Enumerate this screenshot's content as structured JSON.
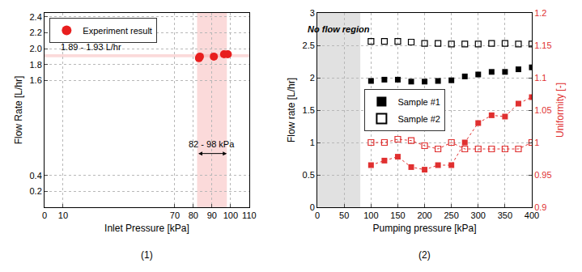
{
  "chart_data": [
    {
      "type": "scatter",
      "caption": "(1)",
      "x_label": "Inlet Pressure [kPa]",
      "y_label": "Flow Rate [L/hr]",
      "series": [
        {
          "name": "Experiment result",
          "color": "#e81e1e",
          "marker": "circle",
          "x": [
            83,
            83.5,
            91,
            96.5,
            98.5
          ],
          "values": [
            1.88,
            1.9,
            1.9,
            1.93,
            1.93
          ]
        }
      ],
      "xlim": [
        0,
        110
      ],
      "xticks": [
        0,
        10,
        70,
        80,
        90,
        100,
        110
      ],
      "ylim": [
        0,
        2.45
      ],
      "yticks": [
        0.2,
        0.4,
        1.6,
        1.8,
        {
          "value": 2,
          "label": "2.0"
        },
        2.2,
        2.4
      ],
      "grid": true,
      "legend": "upper left",
      "x_band": [
        82,
        98
      ],
      "y_band": [
        1.89,
        1.93
      ],
      "annotations": [
        {
          "text": "1.89 - 1.93 L/hr",
          "x": 25,
          "y": 2.02
        },
        {
          "text": "82 - 98 kPa",
          "x": 90,
          "y": 0.8
        }
      ]
    },
    {
      "type": "scatter",
      "caption": "(2)",
      "x_label": "Pumping pressure [kPa]",
      "y_label": "Flow rate [L/hr]",
      "y2_label": "Uniformity [-]",
      "x": [
        100,
        125,
        150,
        175,
        200,
        225,
        250,
        275,
        300,
        325,
        350,
        375,
        400
      ],
      "series": [
        {
          "name": "Sample #1",
          "type": "scatter",
          "color": "#000000",
          "marker": "square",
          "values": [
            1.95,
            1.97,
            1.97,
            1.94,
            1.94,
            1.95,
            1.96,
            2.02,
            2.05,
            2.09,
            2.09,
            2.13,
            2.16
          ]
        },
        {
          "name": "Sample #2",
          "type": "scatter",
          "color": "#000000",
          "marker": "square-open",
          "values": [
            2.56,
            2.56,
            2.56,
            2.55,
            2.53,
            2.53,
            2.52,
            2.52,
            2.52,
            2.53,
            2.53,
            2.52,
            2.52
          ]
        },
        {
          "name": "Sample #1",
          "type": "line",
          "axis": "y2",
          "color": "#e03030",
          "marker": "square",
          "line_style": "dotted",
          "values": [
            0.965,
            0.972,
            0.978,
            0.962,
            0.958,
            0.965,
            0.965,
            1.0,
            1.03,
            1.042,
            1.04,
            1.06,
            1.07
          ]
        },
        {
          "name": "Sample #2",
          "type": "line",
          "axis": "y2",
          "color": "#e03030",
          "marker": "square-open",
          "line_style": "dotted",
          "values": [
            1.0,
            1.0,
            1.005,
            1.003,
            0.995,
            0.99,
            1.0,
            0.99,
            0.99,
            0.99,
            0.99,
            0.99,
            1.0
          ]
        }
      ],
      "xlim": [
        0,
        400
      ],
      "xticks": [
        0,
        50,
        100,
        150,
        200,
        250,
        300,
        350,
        400
      ],
      "ylim": [
        0,
        3
      ],
      "yticks": [
        0,
        0.5,
        1,
        1.5,
        2,
        2.5,
        3
      ],
      "y2lim": [
        0.9,
        1.2
      ],
      "y2ticks": [
        0.9,
        0.95,
        1,
        1.05,
        1.1,
        1.15,
        1.2
      ],
      "grid": true,
      "legend": "center left",
      "x_band": [
        0,
        80
      ],
      "annotations": [
        {
          "text": "No flow region",
          "x": 40,
          "y": 2.75
        }
      ]
    }
  ]
}
